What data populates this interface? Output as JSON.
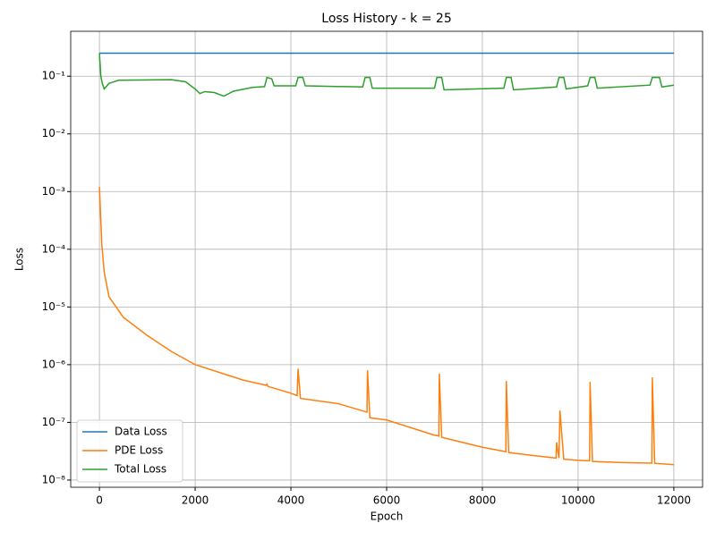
{
  "chart_data": {
    "type": "line",
    "title": "Loss History - k = 25",
    "xlabel": "Epoch",
    "ylabel": "Loss",
    "yscale": "log",
    "grid": true,
    "legend": "lower left",
    "xlim": [
      -600,
      12600
    ],
    "xticks": [
      0,
      2000,
      4000,
      6000,
      8000,
      10000,
      12000
    ],
    "ylim": [
      7.5e-09,
      0.6
    ],
    "yticks": [
      {
        "value": 1e-08,
        "label": "10⁻⁸"
      },
      {
        "value": 1e-07,
        "label": "10⁻⁷"
      },
      {
        "value": 1e-06,
        "label": "10⁻⁶"
      },
      {
        "value": 1e-05,
        "label": "10⁻⁵"
      },
      {
        "value": 0.0001,
        "label": "10⁻⁴"
      },
      {
        "value": 0.001,
        "label": "10⁻³"
      },
      {
        "value": 0.01,
        "label": "10⁻²"
      },
      {
        "value": 0.1,
        "label": "10⁻¹"
      }
    ],
    "series": [
      {
        "name": "Data Loss",
        "color": "#1f77b4",
        "x": [
          0,
          12000
        ],
        "values": [
          0.25,
          0.25
        ]
      },
      {
        "name": "PDE Loss",
        "color": "#ff7f0e",
        "x": [
          0,
          30,
          50,
          100,
          200,
          500,
          1000,
          1500,
          2000,
          3000,
          3480,
          3500,
          3520,
          4000,
          4130,
          4150,
          4200,
          5000,
          5590,
          5600,
          5650,
          6000,
          7000,
          7090,
          7100,
          7150,
          8000,
          8490,
          8500,
          8550,
          9000,
          9540,
          9550,
          9600,
          9620,
          9700,
          10000,
          10240,
          10250,
          10300,
          11000,
          11540,
          11550,
          11600,
          12000
        ],
        "values": [
          0.0012,
          0.0003,
          0.00012,
          4e-05,
          1.5e-05,
          6.6e-06,
          3.2e-06,
          1.7e-06,
          1e-06,
          5.4e-07,
          4.4e-07,
          4.6e-07,
          4.2e-07,
          3.2e-07,
          2.9e-07,
          8.5e-07,
          2.6e-07,
          2.1e-07,
          1.5e-07,
          8e-07,
          1.2e-07,
          1.1e-07,
          6e-08,
          5.8e-08,
          7e-07,
          5.5e-08,
          3.7e-08,
          3.1e-08,
          5.2e-07,
          3e-08,
          2.7e-08,
          2.4e-08,
          4.5e-08,
          2.4e-08,
          1.6e-07,
          2.3e-08,
          2.2e-08,
          2.15e-08,
          5e-07,
          2.1e-08,
          2e-08,
          1.97e-08,
          6e-07,
          1.95e-08,
          1.85e-08
        ]
      },
      {
        "name": "Total Loss",
        "color": "#2ca02c",
        "x": [
          0,
          30,
          60,
          100,
          200,
          400,
          1500,
          1800,
          2000,
          2100,
          2200,
          2400,
          2600,
          2800,
          3200,
          3450,
          3500,
          3600,
          3650,
          4100,
          4150,
          4250,
          4300,
          5500,
          5550,
          5650,
          5700,
          7000,
          7050,
          7150,
          7200,
          8450,
          8500,
          8600,
          8650,
          9550,
          9600,
          9700,
          9750,
          10200,
          10250,
          10350,
          10400,
          11500,
          11550,
          11700,
          11750,
          12000
        ],
        "values": [
          0.25,
          0.1,
          0.075,
          0.06,
          0.075,
          0.085,
          0.087,
          0.08,
          0.06,
          0.05,
          0.054,
          0.052,
          0.045,
          0.055,
          0.064,
          0.066,
          0.095,
          0.09,
          0.068,
          0.068,
          0.095,
          0.095,
          0.068,
          0.065,
          0.095,
          0.095,
          0.062,
          0.062,
          0.095,
          0.095,
          0.058,
          0.062,
          0.095,
          0.095,
          0.058,
          0.065,
          0.095,
          0.095,
          0.06,
          0.068,
          0.095,
          0.095,
          0.062,
          0.07,
          0.095,
          0.095,
          0.065,
          0.07
        ]
      }
    ]
  }
}
